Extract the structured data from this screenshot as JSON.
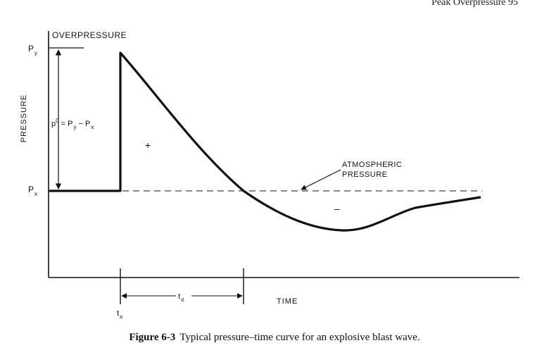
{
  "header": {
    "text": "Peak Overpressure   95"
  },
  "figure": {
    "top_label": "OVERPRESSURE",
    "y_axis_label": "PRESSURE",
    "x_axis_label": "TIME",
    "py_label": {
      "main": "P",
      "sub": "y"
    },
    "px_label": {
      "main": "P",
      "sub": "x"
    },
    "equation": {
      "p": "p",
      "sup": "0",
      "eq": " = P",
      "sub1": "y",
      "minus": " − P",
      "sub2": "x"
    },
    "atmospheric_label": {
      "line1": "ATMOSPHERIC",
      "line2": "PRESSURE"
    },
    "positive_phase": "+",
    "negative_phase": "–",
    "ta_label": {
      "main": "t",
      "sub": "a"
    },
    "td_label": {
      "main": "t",
      "sub": "d"
    }
  },
  "caption": {
    "label": "Figure 6-3",
    "text": "Typical pressure–time curve for an explosive blast wave."
  }
}
